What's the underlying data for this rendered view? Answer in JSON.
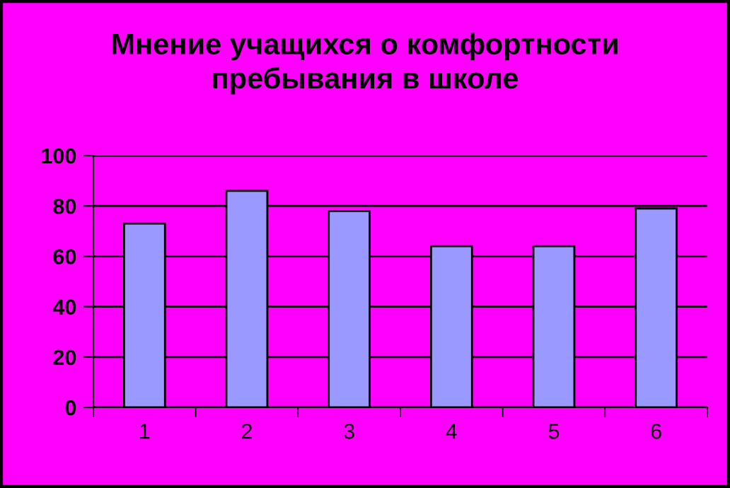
{
  "chart_data": {
    "type": "bar",
    "title": "Мнение учащихся о комфортности\nпребывания в школе",
    "categories": [
      "1",
      "2",
      "3",
      "4",
      "5",
      "6"
    ],
    "values": [
      73,
      86,
      78,
      64,
      64,
      79
    ],
    "color": "#9999ff",
    "ylim": [
      0,
      100
    ],
    "yticks": [
      0,
      20,
      40,
      60,
      80,
      100
    ],
    "grid": "y",
    "legend": false
  }
}
